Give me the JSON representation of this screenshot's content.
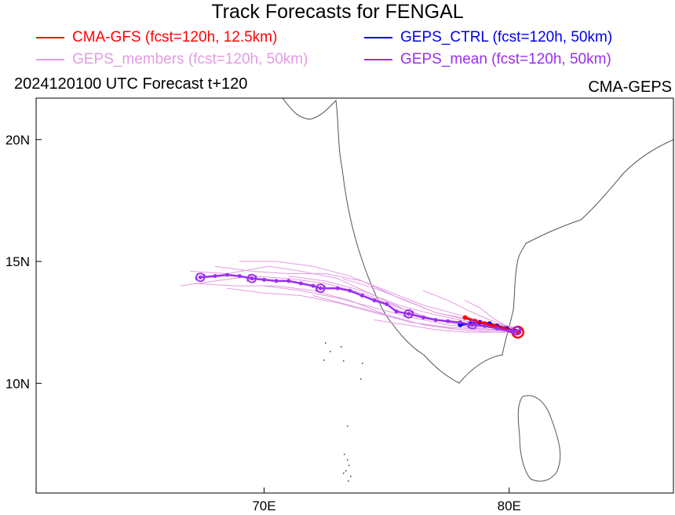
{
  "title": "Track Forecasts for FENGAL",
  "legend": [
    {
      "label": "CMA-GFS (fcst=120h, 12.5km)",
      "color": "#ff0000"
    },
    {
      "label": "GEPS_CTRL (fcst=120h, 50km)",
      "color": "#0000ee"
    },
    {
      "label": "GEPS_members (fcst=120h, 50km)",
      "color": "#e39be3"
    },
    {
      "label": "GEPS_mean (fcst=120h, 50km)",
      "color": "#9a2ff0"
    }
  ],
  "subtitle_left": "2024120100 UTC Forecast t+120",
  "subtitle_right": "CMA-GEPS",
  "axes": {
    "x_ticks": [
      {
        "value": 70,
        "label": "70E"
      },
      {
        "value": 80,
        "label": "80E"
      }
    ],
    "y_ticks": [
      {
        "value": 10,
        "label": "10N"
      },
      {
        "value": 15,
        "label": "15N"
      },
      {
        "value": 20,
        "label": "20N"
      }
    ],
    "lon_range": [
      60.7,
      86.7
    ],
    "lat_range": [
      5.5,
      21.7
    ]
  },
  "tracks": {
    "mean": [
      [
        67.4,
        14.35
      ],
      [
        68.0,
        14.4
      ],
      [
        68.5,
        14.45
      ],
      [
        69.0,
        14.4
      ],
      [
        69.5,
        14.3
      ],
      [
        70.0,
        14.25
      ],
      [
        70.5,
        14.2
      ],
      [
        71.0,
        14.2
      ],
      [
        71.5,
        14.1
      ],
      [
        72.0,
        14.0
      ],
      [
        72.3,
        13.9
      ],
      [
        73.0,
        13.9
      ],
      [
        73.5,
        13.8
      ],
      [
        74.0,
        13.6
      ],
      [
        74.5,
        13.4
      ],
      [
        75.0,
        13.25
      ],
      [
        75.4,
        12.95
      ],
      [
        75.9,
        12.85
      ],
      [
        76.5,
        12.7
      ],
      [
        77.0,
        12.6
      ],
      [
        77.5,
        12.55
      ],
      [
        78.0,
        12.5
      ],
      [
        78.5,
        12.4
      ],
      [
        79.0,
        12.35
      ],
      [
        79.5,
        12.25
      ],
      [
        80.0,
        12.15
      ],
      [
        80.3,
        12.15
      ]
    ],
    "mean_markers": [
      [
        67.4,
        14.35
      ],
      [
        69.5,
        14.3
      ],
      [
        72.3,
        13.9
      ],
      [
        75.9,
        12.85
      ],
      [
        78.5,
        12.4
      ],
      [
        80.3,
        12.15
      ]
    ],
    "ctrl": [
      [
        78.0,
        12.4
      ],
      [
        78.4,
        12.45
      ],
      [
        78.8,
        12.5
      ],
      [
        79.2,
        12.45
      ],
      [
        79.5,
        12.35
      ],
      [
        79.9,
        12.25
      ],
      [
        80.2,
        12.15
      ],
      [
        80.4,
        12.1
      ]
    ],
    "gfs": [
      [
        78.2,
        12.7
      ],
      [
        78.6,
        12.55
      ],
      [
        79.0,
        12.45
      ],
      [
        79.4,
        12.35
      ],
      [
        79.8,
        12.25
      ],
      [
        80.1,
        12.15
      ],
      [
        80.35,
        12.1
      ]
    ],
    "members": [
      [
        [
          66.6,
          14.0
        ],
        [
          68.0,
          14.2
        ],
        [
          69.5,
          14.4
        ],
        [
          71.0,
          14.3
        ],
        [
          72.5,
          14.1
        ],
        [
          74.0,
          13.7
        ],
        [
          75.5,
          13.1
        ],
        [
          77.0,
          12.6
        ],
        [
          78.5,
          12.3
        ],
        [
          80.3,
          12.1
        ]
      ],
      [
        [
          67.0,
          14.6
        ],
        [
          68.5,
          14.5
        ],
        [
          70.2,
          14.8
        ],
        [
          71.5,
          14.6
        ],
        [
          73.0,
          14.3
        ],
        [
          74.5,
          13.6
        ],
        [
          76.0,
          12.9
        ],
        [
          77.5,
          12.5
        ],
        [
          79.0,
          12.3
        ],
        [
          80.3,
          12.2
        ]
      ],
      [
        [
          67.2,
          14.1
        ],
        [
          68.8,
          14.0
        ],
        [
          70.5,
          14.0
        ],
        [
          72.0,
          13.8
        ],
        [
          73.5,
          13.4
        ],
        [
          75.0,
          12.8
        ],
        [
          76.5,
          12.4
        ],
        [
          78.0,
          12.2
        ],
        [
          79.5,
          12.1
        ],
        [
          80.3,
          12.1
        ]
      ],
      [
        [
          68.0,
          14.8
        ],
        [
          69.5,
          14.6
        ],
        [
          71.0,
          14.5
        ],
        [
          72.5,
          14.5
        ],
        [
          74.0,
          14.2
        ],
        [
          75.5,
          13.5
        ],
        [
          77.0,
          12.9
        ],
        [
          78.5,
          12.6
        ],
        [
          80.2,
          12.3
        ]
      ],
      [
        [
          68.5,
          13.9
        ],
        [
          70.0,
          13.7
        ],
        [
          71.5,
          13.6
        ],
        [
          73.0,
          13.3
        ],
        [
          74.5,
          12.9
        ],
        [
          76.0,
          12.5
        ],
        [
          77.5,
          12.3
        ],
        [
          79.0,
          12.2
        ],
        [
          80.3,
          12.15
        ]
      ],
      [
        [
          69.0,
          15.0
        ],
        [
          70.5,
          15.0
        ],
        [
          72.0,
          14.8
        ],
        [
          73.5,
          14.4
        ],
        [
          75.0,
          13.8
        ],
        [
          76.5,
          13.2
        ],
        [
          78.0,
          12.8
        ],
        [
          79.5,
          12.4
        ],
        [
          80.3,
          12.2
        ]
      ],
      [
        [
          70.0,
          14.0
        ],
        [
          71.5,
          13.8
        ],
        [
          73.0,
          13.5
        ],
        [
          74.5,
          13.1
        ],
        [
          76.0,
          12.7
        ],
        [
          77.5,
          12.4
        ],
        [
          79.0,
          12.2
        ],
        [
          80.3,
          12.1
        ]
      ],
      [
        [
          71.0,
          14.4
        ],
        [
          72.5,
          14.2
        ],
        [
          74.0,
          13.8
        ],
        [
          75.5,
          13.2
        ],
        [
          77.0,
          12.8
        ],
        [
          78.5,
          12.5
        ],
        [
          80.2,
          12.2
        ]
      ],
      [
        [
          72.0,
          13.6
        ],
        [
          73.5,
          13.2
        ],
        [
          75.0,
          12.8
        ],
        [
          76.5,
          12.4
        ],
        [
          78.0,
          12.2
        ],
        [
          79.5,
          12.1
        ],
        [
          80.3,
          12.1
        ]
      ],
      [
        [
          73.2,
          14.3
        ],
        [
          74.5,
          13.9
        ],
        [
          75.8,
          13.4
        ],
        [
          77.0,
          12.9
        ],
        [
          78.3,
          12.6
        ],
        [
          79.6,
          12.3
        ],
        [
          80.3,
          12.2
        ]
      ],
      [
        [
          74.5,
          12.6
        ],
        [
          75.8,
          12.4
        ],
        [
          77.0,
          12.2
        ],
        [
          78.2,
          12.1
        ],
        [
          79.4,
          12.1
        ],
        [
          80.3,
          12.1
        ]
      ],
      [
        [
          76.5,
          13.8
        ],
        [
          77.5,
          13.4
        ],
        [
          78.3,
          13.0
        ],
        [
          79.2,
          12.6
        ],
        [
          80.0,
          12.3
        ],
        [
          80.4,
          12.2
        ]
      ],
      [
        [
          78.2,
          13.4
        ],
        [
          78.8,
          13.1
        ],
        [
          79.3,
          12.7
        ],
        [
          79.8,
          12.4
        ],
        [
          80.3,
          12.2
        ]
      ]
    ]
  }
}
